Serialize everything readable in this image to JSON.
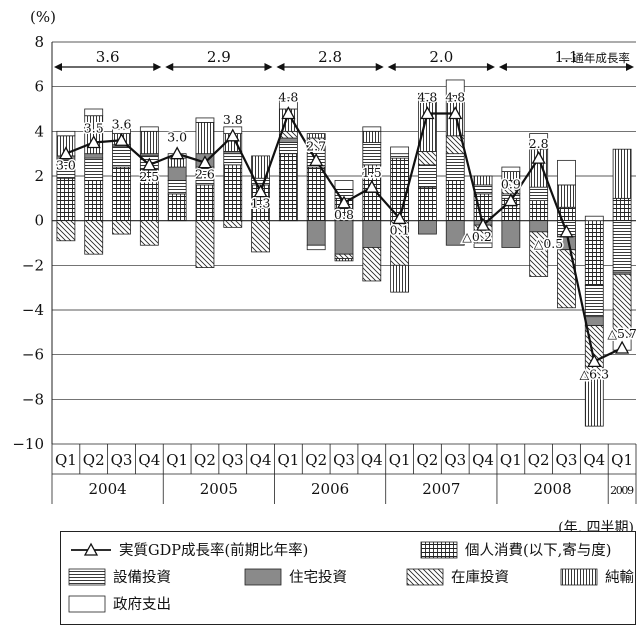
{
  "chart_data": {
    "type": "bar",
    "y_unit": "(%)",
    "x_unit": "(年, 四半期)",
    "ylim": [
      -10,
      8
    ],
    "yticks": [
      8,
      6,
      4,
      2,
      0,
      -2,
      -4,
      -6,
      -8,
      -10
    ],
    "yticks_text": [
      "8",
      "6",
      "4",
      "2",
      "0",
      "−2",
      "−4",
      "−6",
      "−8",
      "−10"
    ],
    "quarters": [
      "Q1",
      "Q2",
      "Q3",
      "Q4",
      "Q1",
      "Q2",
      "Q3",
      "Q4",
      "Q1",
      "Q2",
      "Q3",
      "Q4",
      "Q1",
      "Q2",
      "Q3",
      "Q4",
      "Q1",
      "Q2",
      "Q3",
      "Q4",
      "Q1"
    ],
    "years": [
      {
        "label": "2004",
        "span": 4
      },
      {
        "label": "2005",
        "span": 4
      },
      {
        "label": "2006",
        "span": 4
      },
      {
        "label": "2007",
        "span": 4
      },
      {
        "label": "2008",
        "span": 4
      },
      {
        "label": "2009",
        "span": 1
      }
    ],
    "annual_growth": [
      {
        "label": "3.6",
        "span": 4
      },
      {
        "label": "2.9",
        "span": 4
      },
      {
        "label": "2.8",
        "span": 4
      },
      {
        "label": "2.0",
        "span": 4
      },
      {
        "label": "1.1",
        "span": 5
      }
    ],
    "annual_growth_note": "通年成長率",
    "grid": true,
    "series": [
      {
        "name": "個人消費(以下,寄与度)",
        "pattern": "grid",
        "values": [
          1.9,
          1.8,
          2.4,
          2.3,
          1.2,
          1.6,
          2.5,
          1.6,
          3.0,
          2.4,
          1.0,
          2.5,
          2.8,
          1.5,
          1.8,
          1.2,
          1.0,
          0.9,
          0.6,
          -2.9,
          1.0
        ]
      },
      {
        "name": "設備投資",
        "pattern": "hlines",
        "values": [
          0.8,
          1.0,
          0.9,
          0.6,
          0.6,
          0.8,
          0.5,
          0.3,
          0.5,
          0.8,
          0.4,
          1.0,
          0.2,
          1.0,
          1.2,
          0.4,
          0.2,
          0.6,
          -0.7,
          -1.4,
          -2.3
        ]
      },
      {
        "name": "住宅投資",
        "pattern": "gray",
        "values": [
          0.2,
          0.2,
          0.1,
          0.1,
          0.6,
          0.6,
          0.1,
          0.0,
          0.2,
          -1.1,
          -1.5,
          -1.2,
          0.0,
          -0.6,
          -1.1,
          -0.2,
          -1.2,
          -0.5,
          -0.6,
          -0.4,
          -0.1
        ]
      },
      {
        "name": "在庫投資",
        "pattern": "diag",
        "values": [
          -0.9,
          -1.5,
          -0.6,
          -1.1,
          0.0,
          -2.1,
          -0.3,
          -1.4,
          0.3,
          0.5,
          -0.2,
          -1.5,
          -2.0,
          0.6,
          0.8,
          -0.8,
          0.6,
          -2.0,
          -2.6,
          -2.3,
          -2.8
        ]
      },
      {
        "name": "純輸出",
        "pattern": "vlines",
        "values": [
          0.9,
          1.7,
          0.5,
          1.0,
          0.4,
          1.4,
          0.8,
          1.0,
          1.0,
          0.2,
          -0.1,
          0.5,
          -1.2,
          2.2,
          1.8,
          0.4,
          0.4,
          1.7,
          1.0,
          -2.2,
          2.2
        ]
      },
      {
        "name": "政府支出",
        "pattern": "white",
        "values": [
          0.2,
          0.3,
          0.2,
          0.2,
          0.2,
          0.2,
          0.3,
          0.0,
          0.5,
          -0.2,
          0.4,
          0.2,
          0.3,
          0.4,
          0.7,
          -0.2,
          0.2,
          0.7,
          1.1,
          0.2,
          -0.6
        ]
      }
    ],
    "line": {
      "name": "実質GDP成長率(前期比年率)",
      "values": [
        3.0,
        3.5,
        3.6,
        2.5,
        3.0,
        2.6,
        3.8,
        1.3,
        4.8,
        2.7,
        0.8,
        1.5,
        0.1,
        4.8,
        4.8,
        -0.2,
        0.9,
        2.8,
        -0.5,
        -6.3,
        -5.7
      ],
      "labels": [
        "3.0",
        "3.5",
        "3.6",
        "2.5",
        "3.0",
        "2.6",
        "3.8",
        "1.3",
        "4.8",
        "2.7",
        "0.8",
        "1.5",
        "0.1",
        "4.8",
        "4.8",
        "△0.2",
        "0.9",
        "2.8",
        "△0.5",
        "△6.3",
        "△5.7"
      ]
    }
  }
}
